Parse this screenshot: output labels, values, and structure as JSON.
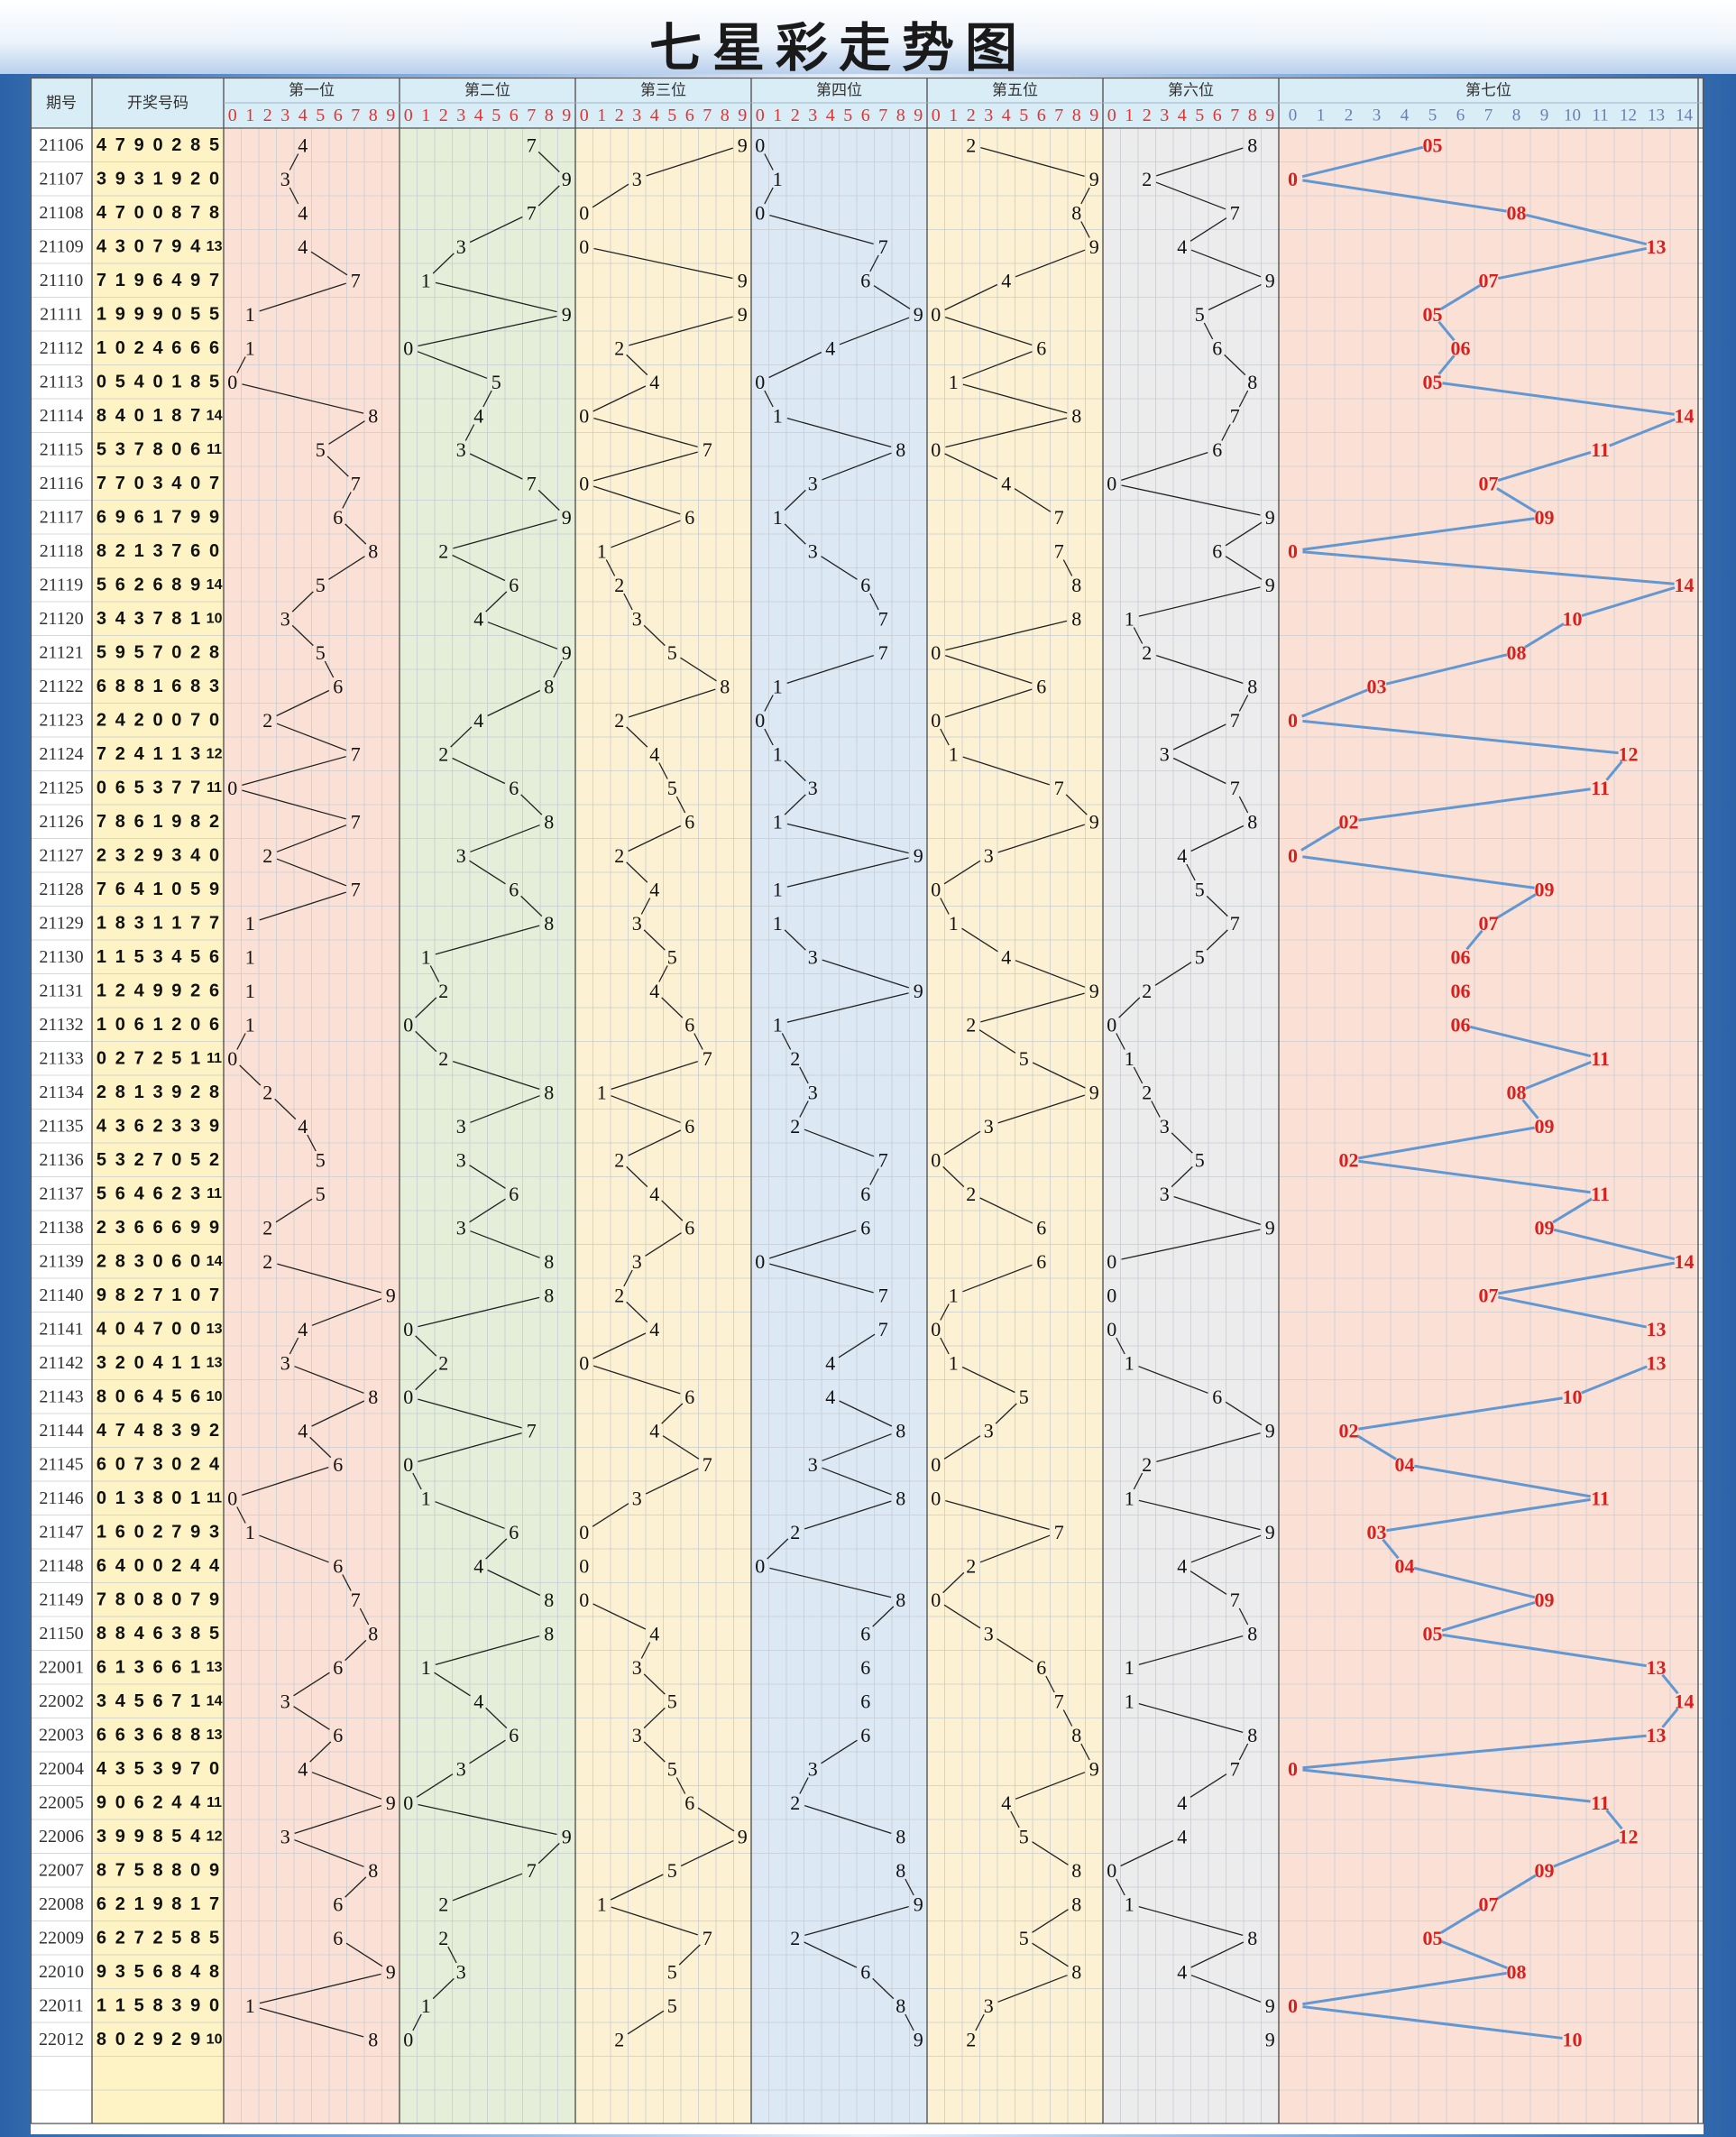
{
  "title": "七星彩走势图",
  "header": {
    "period_label": "期号",
    "draw_label": "开奖号码",
    "positions": [
      "第一位",
      "第二位",
      "第三位",
      "第四位",
      "第五位",
      "第六位",
      "第七位"
    ]
  },
  "colors": {
    "zone_bg": [
      "#fbe1d5",
      "#e4eed9",
      "#fcf1d3",
      "#dce8f4",
      "#fcf1d3",
      "#ececec",
      "#fbe1d5"
    ],
    "header_bg": "#d9edf7",
    "draw_col_bg": "#fdf3c4",
    "grid": "#c7ccd2",
    "line_dark": "#222222",
    "line_blue": "#6397d2",
    "red_text": "#d62020",
    "digit_red": "#e03333",
    "digit_blue": "#6a7fb0"
  },
  "chart_data": {
    "type": "table",
    "title": "七星彩走势图",
    "columns": [
      "期号",
      "开奖号码",
      "第一位",
      "第二位",
      "第三位",
      "第四位",
      "第五位",
      "第六位",
      "第七位"
    ],
    "position_ranges": [
      [
        0,
        9
      ],
      [
        0,
        9
      ],
      [
        0,
        9
      ],
      [
        0,
        9
      ],
      [
        0,
        9
      ],
      [
        0,
        9
      ],
      [
        0,
        14
      ]
    ],
    "rows": [
      {
        "period": "21106",
        "digits": [
          4,
          7,
          9,
          0,
          2,
          8,
          5
        ]
      },
      {
        "period": "21107",
        "digits": [
          3,
          9,
          3,
          1,
          9,
          2,
          0
        ]
      },
      {
        "period": "21108",
        "digits": [
          4,
          7,
          0,
          0,
          8,
          7,
          8
        ]
      },
      {
        "period": "21109",
        "digits": [
          4,
          3,
          0,
          7,
          9,
          4,
          13
        ]
      },
      {
        "period": "21110",
        "digits": [
          7,
          1,
          9,
          6,
          4,
          9,
          7
        ]
      },
      {
        "period": "21111",
        "digits": [
          1,
          9,
          9,
          9,
          0,
          5,
          5
        ]
      },
      {
        "period": "21112",
        "digits": [
          1,
          0,
          2,
          4,
          6,
          6,
          6
        ]
      },
      {
        "period": "21113",
        "digits": [
          0,
          5,
          4,
          0,
          1,
          8,
          5
        ]
      },
      {
        "period": "21114",
        "digits": [
          8,
          4,
          0,
          1,
          8,
          7,
          14
        ]
      },
      {
        "period": "21115",
        "digits": [
          5,
          3,
          7,
          8,
          0,
          6,
          11
        ]
      },
      {
        "period": "21116",
        "digits": [
          7,
          7,
          0,
          3,
          4,
          0,
          7
        ]
      },
      {
        "period": "21117",
        "digits": [
          6,
          9,
          6,
          1,
          7,
          9,
          9
        ]
      },
      {
        "period": "21118",
        "digits": [
          8,
          2,
          1,
          3,
          7,
          6,
          0
        ]
      },
      {
        "period": "21119",
        "digits": [
          5,
          6,
          2,
          6,
          8,
          9,
          14
        ]
      },
      {
        "period": "21120",
        "digits": [
          3,
          4,
          3,
          7,
          8,
          1,
          10
        ]
      },
      {
        "period": "21121",
        "digits": [
          5,
          9,
          5,
          7,
          0,
          2,
          8
        ]
      },
      {
        "period": "21122",
        "digits": [
          6,
          8,
          8,
          1,
          6,
          8,
          3
        ]
      },
      {
        "period": "21123",
        "digits": [
          2,
          4,
          2,
          0,
          0,
          7,
          0
        ]
      },
      {
        "period": "21124",
        "digits": [
          7,
          2,
          4,
          1,
          1,
          3,
          12
        ]
      },
      {
        "period": "21125",
        "digits": [
          0,
          6,
          5,
          3,
          7,
          7,
          11
        ]
      },
      {
        "period": "21126",
        "digits": [
          7,
          8,
          6,
          1,
          9,
          8,
          2
        ]
      },
      {
        "period": "21127",
        "digits": [
          2,
          3,
          2,
          9,
          3,
          4,
          0
        ]
      },
      {
        "period": "21128",
        "digits": [
          7,
          6,
          4,
          1,
          0,
          5,
          9
        ]
      },
      {
        "period": "21129",
        "digits": [
          1,
          8,
          3,
          1,
          1,
          7,
          7
        ]
      },
      {
        "period": "21130",
        "digits": [
          1,
          1,
          5,
          3,
          4,
          5,
          6
        ]
      },
      {
        "period": "21131",
        "digits": [
          1,
          2,
          4,
          9,
          9,
          2,
          6
        ]
      },
      {
        "period": "21132",
        "digits": [
          1,
          0,
          6,
          1,
          2,
          0,
          6
        ]
      },
      {
        "period": "21133",
        "digits": [
          0,
          2,
          7,
          2,
          5,
          1,
          11
        ]
      },
      {
        "period": "21134",
        "digits": [
          2,
          8,
          1,
          3,
          9,
          2,
          8
        ]
      },
      {
        "period": "21135",
        "digits": [
          4,
          3,
          6,
          2,
          3,
          3,
          9
        ]
      },
      {
        "period": "21136",
        "digits": [
          5,
          3,
          2,
          7,
          0,
          5,
          2
        ]
      },
      {
        "period": "21137",
        "digits": [
          5,
          6,
          4,
          6,
          2,
          3,
          11
        ]
      },
      {
        "period": "21138",
        "digits": [
          2,
          3,
          6,
          6,
          6,
          9,
          9
        ]
      },
      {
        "period": "21139",
        "digits": [
          2,
          8,
          3,
          0,
          6,
          0,
          14
        ]
      },
      {
        "period": "21140",
        "digits": [
          9,
          8,
          2,
          7,
          1,
          0,
          7
        ]
      },
      {
        "period": "21141",
        "digits": [
          4,
          0,
          4,
          7,
          0,
          0,
          13
        ]
      },
      {
        "period": "21142",
        "digits": [
          3,
          2,
          0,
          4,
          1,
          1,
          13
        ]
      },
      {
        "period": "21143",
        "digits": [
          8,
          0,
          6,
          4,
          5,
          6,
          10
        ]
      },
      {
        "period": "21144",
        "digits": [
          4,
          7,
          4,
          8,
          3,
          9,
          2
        ]
      },
      {
        "period": "21145",
        "digits": [
          6,
          0,
          7,
          3,
          0,
          2,
          4
        ]
      },
      {
        "period": "21146",
        "digits": [
          0,
          1,
          3,
          8,
          0,
          1,
          11
        ]
      },
      {
        "period": "21147",
        "digits": [
          1,
          6,
          0,
          2,
          7,
          9,
          3
        ]
      },
      {
        "period": "21148",
        "digits": [
          6,
          4,
          0,
          0,
          2,
          4,
          4
        ]
      },
      {
        "period": "21149",
        "digits": [
          7,
          8,
          0,
          8,
          0,
          7,
          9
        ]
      },
      {
        "period": "21150",
        "digits": [
          8,
          8,
          4,
          6,
          3,
          8,
          5
        ]
      },
      {
        "period": "22001",
        "digits": [
          6,
          1,
          3,
          6,
          6,
          1,
          13
        ]
      },
      {
        "period": "22002",
        "digits": [
          3,
          4,
          5,
          6,
          7,
          1,
          14
        ]
      },
      {
        "period": "22003",
        "digits": [
          6,
          6,
          3,
          6,
          8,
          8,
          13
        ]
      },
      {
        "period": "22004",
        "digits": [
          4,
          3,
          5,
          3,
          9,
          7,
          0
        ]
      },
      {
        "period": "22005",
        "digits": [
          9,
          0,
          6,
          2,
          4,
          4,
          11
        ]
      },
      {
        "period": "22006",
        "digits": [
          3,
          9,
          9,
          8,
          5,
          4,
          12
        ]
      },
      {
        "period": "22007",
        "digits": [
          8,
          7,
          5,
          8,
          8,
          0,
          9
        ]
      },
      {
        "period": "22008",
        "digits": [
          6,
          2,
          1,
          9,
          8,
          1,
          7
        ]
      },
      {
        "period": "22009",
        "digits": [
          6,
          2,
          7,
          2,
          5,
          8,
          5
        ]
      },
      {
        "period": "22010",
        "digits": [
          9,
          3,
          5,
          6,
          8,
          4,
          8
        ]
      },
      {
        "period": "22011",
        "digits": [
          1,
          1,
          5,
          8,
          3,
          9,
          0
        ]
      },
      {
        "period": "22012",
        "digits": [
          8,
          0,
          2,
          9,
          2,
          9,
          10
        ]
      }
    ]
  }
}
